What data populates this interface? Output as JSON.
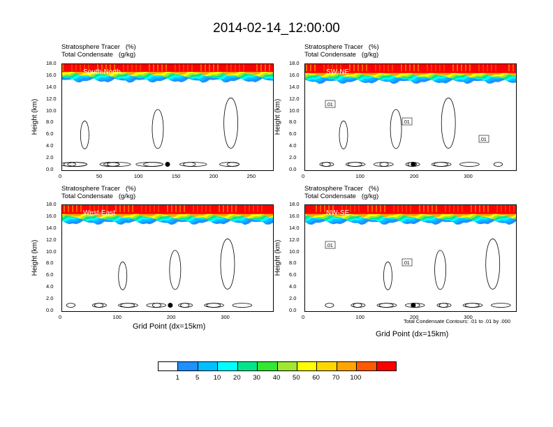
{
  "figure_title": "2014-02-14_12:00:00",
  "panel_titles": {
    "line1": "Stratosphere Tracer   (%)",
    "line2": "Total Condensate   (g/kg)"
  },
  "ylabel": "Height (km)",
  "xlabel": "Grid Point (dx=15km)",
  "footnote": "Total Condensate Contours: .01 to .01 by .000",
  "colorbar": {
    "labels": [
      "1",
      "5",
      "10",
      "20",
      "30",
      "40",
      "50",
      "60",
      "70",
      "100"
    ],
    "colors": [
      "#ffffff",
      "#1e90ff",
      "#00bfff",
      "#00ffff",
      "#00e68c",
      "#32e632",
      "#a0e632",
      "#ffff00",
      "#ffd700",
      "#ffa500",
      "#ff5a00",
      "#ff0000"
    ]
  },
  "chart_data": [
    {
      "type": "heatmap",
      "name": "South-North",
      "xlim": [
        0,
        280
      ],
      "ylim": [
        0,
        18
      ],
      "xticks": [
        0,
        50,
        100,
        150,
        200,
        250
      ],
      "yticks": [
        "0.0",
        "2.0",
        "4.0",
        "6.0",
        "8.0",
        "10.0",
        "12.0",
        "14.0",
        "16.0",
        "18.0"
      ],
      "tracer_base_km": 15.2,
      "marker_x": 140,
      "marker_y_km": 1.0
    },
    {
      "type": "heatmap",
      "name": "SW-NE",
      "xlim": [
        0,
        390
      ],
      "ylim": [
        0,
        18
      ],
      "xticks": [
        0,
        100,
        200,
        300
      ],
      "yticks": [
        "0.0",
        "2.0",
        "4.0",
        "6.0",
        "8.0",
        "10.0",
        "12.0",
        "14.0",
        "16.0",
        "18.0"
      ],
      "tracer_base_km": 15.0,
      "marker_x": 200,
      "marker_y_km": 1.0,
      "contour_labels": [
        ".01",
        ".01",
        ".01"
      ]
    },
    {
      "type": "heatmap",
      "name": "West-East",
      "xlim": [
        0,
        390
      ],
      "ylim": [
        0,
        18
      ],
      "xticks": [
        0,
        100,
        200,
        300
      ],
      "yticks": [
        "0.0",
        "2.0",
        "4.0",
        "6.0",
        "8.0",
        "10.0",
        "12.0",
        "14.0",
        "16.0",
        "18.0"
      ],
      "tracer_base_km": 15.0,
      "marker_x": 200,
      "marker_y_km": 1.0
    },
    {
      "type": "heatmap",
      "name": "NW-SE",
      "xlim": [
        0,
        390
      ],
      "ylim": [
        0,
        18
      ],
      "xticks": [
        0,
        100,
        200,
        300
      ],
      "yticks": [
        "0.0",
        "2.0",
        "4.0",
        "6.0",
        "8.0",
        "10.0",
        "12.0",
        "14.0",
        "16.0",
        "18.0"
      ],
      "tracer_base_km": 15.0,
      "marker_x": 200,
      "marker_y_km": 1.0,
      "contour_labels": [
        ".01",
        ".01"
      ]
    }
  ]
}
